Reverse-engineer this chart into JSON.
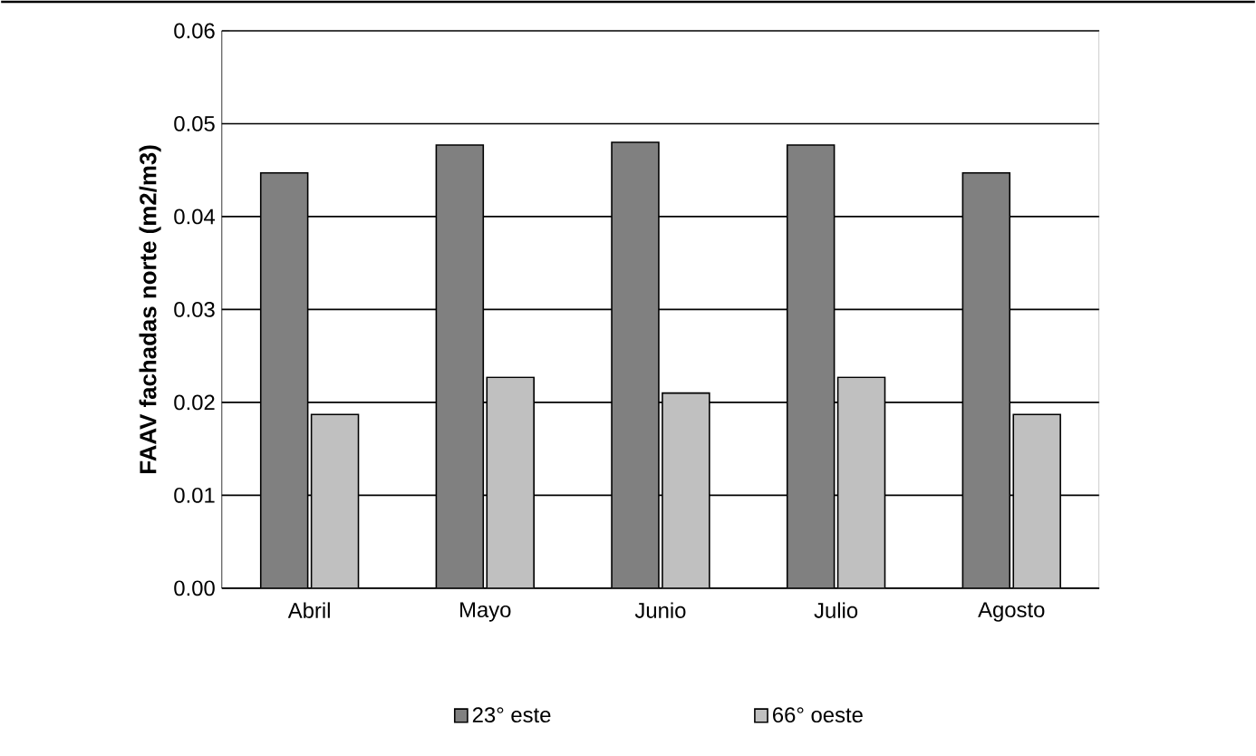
{
  "chart_data": {
    "type": "bar",
    "ylabel": "FAAV fachadas norte (m2/m3)",
    "categories": [
      "Abril",
      "Mayo",
      "Junio",
      "Julio",
      "Agosto"
    ],
    "series": [
      {
        "name": "23° este",
        "color": "#808080",
        "values": [
          0.0447,
          0.0477,
          0.048,
          0.0477,
          0.0447
        ]
      },
      {
        "name": "66° oeste",
        "color": "#c0c0c0",
        "values": [
          0.0187,
          0.0227,
          0.021,
          0.0227,
          0.0187
        ]
      }
    ],
    "ylim": [
      0,
      0.06
    ],
    "yticks": [
      {
        "value": 0,
        "label": "0.00"
      },
      {
        "value": 0.01,
        "label": "0.01"
      },
      {
        "value": 0.02,
        "label": "0.02"
      },
      {
        "value": 0.03,
        "label": "0.03"
      },
      {
        "value": 0.04,
        "label": "0.04"
      },
      {
        "value": 0.05,
        "label": "0.05"
      },
      {
        "value": 0.06,
        "label": "0.06"
      }
    ],
    "grid": "y",
    "legend": "bottom"
  }
}
